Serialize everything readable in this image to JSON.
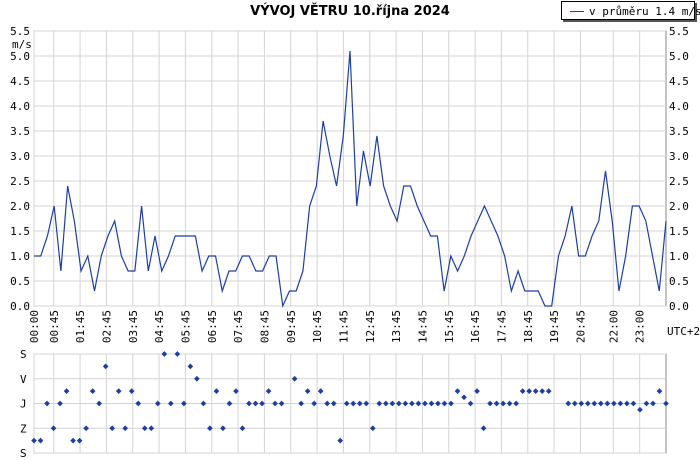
{
  "chart_data": [
    {
      "type": "line",
      "title": "VÝVOJ VĚTRU  10.října 2024",
      "ylabel": "m/s",
      "xlabel": "",
      "timezone_label": "UTC+2",
      "ylim": [
        0,
        5.5
      ],
      "yticks": [
        "0.0",
        "0.5",
        "1.0",
        "1.5",
        "2.0",
        "2.5",
        "3.0",
        "3.5",
        "4.0",
        "4.5",
        "5.0",
        "5.5"
      ],
      "xticks": [
        "00:00",
        "00:45",
        "01:45",
        "02:45",
        "03:45",
        "04:45",
        "05:45",
        "06:45",
        "07:45",
        "08:45",
        "09:45",
        "10:45",
        "11:45",
        "12:45",
        "13:45",
        "14:45",
        "15:45",
        "16:45",
        "17:45",
        "18:45",
        "19:45",
        "20:45",
        "22:00",
        "23:00"
      ],
      "grid": true,
      "legend_position": "top-right",
      "series": [
        {
          "name": "v průměru 1.4 m/s",
          "color": "#1f3f9f",
          "values": [
            1.0,
            1.0,
            1.4,
            2.0,
            0.7,
            2.4,
            1.7,
            0.7,
            1.0,
            0.3,
            1.0,
            1.4,
            1.7,
            1.0,
            0.7,
            0.7,
            2.0,
            0.7,
            1.4,
            0.7,
            1.0,
            1.4,
            1.4,
            1.4,
            1.4,
            0.7,
            1.0,
            1.0,
            0.3,
            0.7,
            0.7,
            1.0,
            1.0,
            0.7,
            0.7,
            1.0,
            1.0,
            0.0,
            0.3,
            0.3,
            0.7,
            2.0,
            2.4,
            3.7,
            3.0,
            2.4,
            3.4,
            5.1,
            2.0,
            3.1,
            2.4,
            3.4,
            2.4,
            2.0,
            1.7,
            2.4,
            2.4,
            2.0,
            1.7,
            1.4,
            1.4,
            0.3,
            1.0,
            0.7,
            1.0,
            1.4,
            1.7,
            2.0,
            1.7,
            1.4,
            1.0,
            0.3,
            0.7,
            0.3,
            0.3,
            0.3,
            0.0,
            0.0,
            1.0,
            1.4,
            2.0,
            1.0,
            1.0,
            1.4,
            1.7,
            2.7,
            1.7,
            0.3,
            1.0,
            2.0,
            2.0,
            1.7,
            1.0,
            0.3,
            1.7
          ]
        }
      ]
    },
    {
      "type": "scatter",
      "ylabel": "",
      "yticks": [
        "S",
        "V",
        "J",
        "Z",
        "S"
      ],
      "series": [
        {
          "name": "",
          "color": "#1f3f9f",
          "values": [
            3.5,
            3.5,
            2.0,
            3.0,
            2.0,
            1.5,
            3.5,
            3.5,
            3.0,
            1.5,
            2.0,
            0.5,
            3.0,
            1.5,
            3.0,
            1.5,
            2.0,
            3.0,
            3.0,
            2.0,
            0.0,
            2.0,
            0.0,
            2.0,
            0.5,
            1.0,
            2.0,
            3.0,
            1.5,
            3.0,
            2.0,
            1.5,
            3.0,
            2.0,
            2.0,
            2.0,
            1.5,
            2.0,
            2.0,
            null,
            1.0,
            2.0,
            1.5,
            2.0,
            1.5,
            2.0,
            2.0,
            3.5,
            2.0,
            2.0,
            2.0,
            2.0,
            3.0,
            2.0,
            2.0,
            2.0,
            2.0,
            2.0,
            2.0,
            2.0,
            2.0,
            2.0,
            2.0,
            2.0,
            2.0,
            1.5,
            1.75,
            2.0,
            1.5,
            3.0,
            2.0,
            2.0,
            2.0,
            2.0,
            2.0,
            1.5,
            1.5,
            1.5,
            1.5,
            1.5,
            null,
            null,
            2.0,
            2.0,
            2.0,
            2.0,
            2.0,
            2.0,
            2.0,
            2.0,
            2.0,
            2.0,
            2.0,
            2.25,
            2.0,
            2.0,
            1.5,
            2.0
          ]
        }
      ]
    }
  ]
}
